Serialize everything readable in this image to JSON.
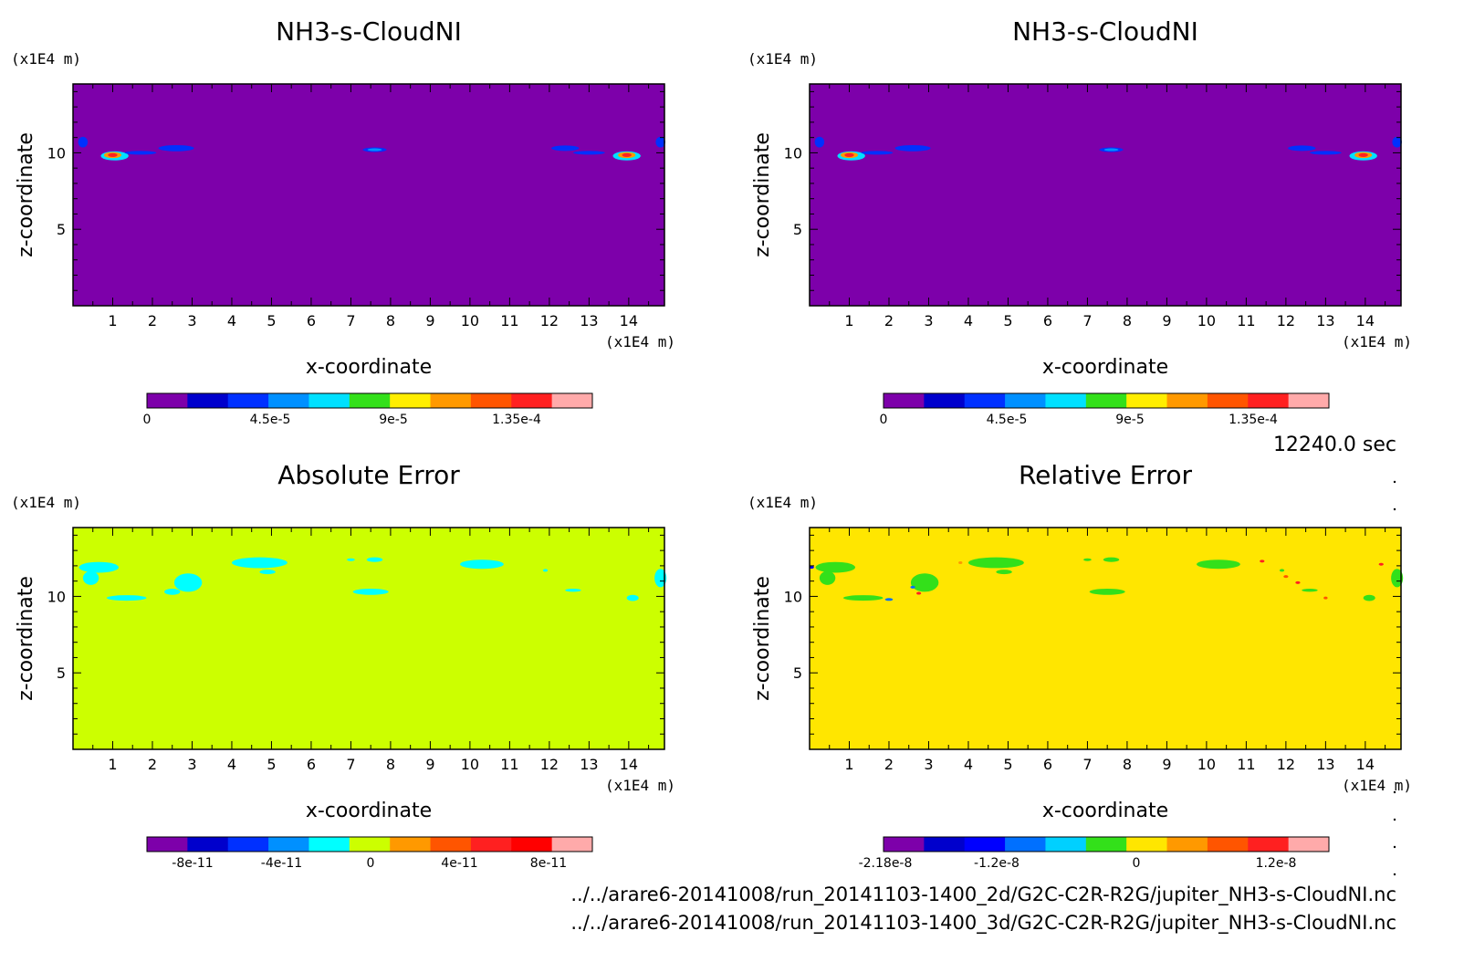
{
  "figure": {
    "time_label": "12240.0 sec",
    "files": [
      "../../arare6-20141008/run_20141103-1400_2d/G2C-C2R-R2G/jupiter_NH3-s-CloudNI.nc",
      "../../arare6-20141008/run_20141103-1400_3d/G2C-C2R-R2G/jupiter_NH3-s-CloudNI.nc"
    ]
  },
  "chart_data": [
    {
      "type": "heatmap",
      "title": "NH3-s-CloudNI",
      "xlabel": "x-coordinate",
      "ylabel": "z-coordinate",
      "x_unit": "(x1E4 m)",
      "y_unit": "(x1E4 m)",
      "xlim": [
        0,
        14.9
      ],
      "ylim": [
        0,
        14.5
      ],
      "x_ticks": [
        "1",
        "2",
        "3",
        "4",
        "5",
        "6",
        "7",
        "8",
        "9",
        "10",
        "11",
        "12",
        "13",
        "14"
      ],
      "y_ticks": [
        "5",
        "10"
      ],
      "background": "#7d00aa",
      "colorbar": {
        "colors": [
          "#7d00aa",
          "#0000cc",
          "#0030ff",
          "#0090ff",
          "#00e0ff",
          "#33e01a",
          "#ffee00",
          "#ff9900",
          "#ff5500",
          "#ff2020",
          "#ffaaaa"
        ],
        "tick_labels": [
          "0",
          "4.5e-5",
          "9e-5",
          "1.35e-4"
        ]
      },
      "features": [
        {
          "x": 0.25,
          "z": 10.7,
          "rx": 0.12,
          "rz": 0.35,
          "color": "#0030ff"
        },
        {
          "x": 1.05,
          "z": 9.8,
          "rx": 0.35,
          "rz": 0.3,
          "color": "#00e0ff"
        },
        {
          "x": 1.0,
          "z": 9.85,
          "rx": 0.22,
          "rz": 0.2,
          "color": "#ff9900"
        },
        {
          "x": 1.0,
          "z": 9.85,
          "rx": 0.12,
          "rz": 0.12,
          "color": "#ff2020"
        },
        {
          "x": 1.7,
          "z": 10.0,
          "rx": 0.4,
          "rz": 0.12,
          "color": "#0030ff"
        },
        {
          "x": 2.6,
          "z": 10.3,
          "rx": 0.45,
          "rz": 0.2,
          "color": "#0030ff"
        },
        {
          "x": 7.6,
          "z": 10.2,
          "rx": 0.3,
          "rz": 0.15,
          "color": "#0030ff"
        },
        {
          "x": 7.6,
          "z": 10.2,
          "rx": 0.18,
          "rz": 0.07,
          "color": "#0090ff"
        },
        {
          "x": 12.4,
          "z": 10.3,
          "rx": 0.35,
          "rz": 0.18,
          "color": "#0030ff"
        },
        {
          "x": 13.0,
          "z": 10.0,
          "rx": 0.4,
          "rz": 0.12,
          "color": "#0030ff"
        },
        {
          "x": 13.95,
          "z": 9.8,
          "rx": 0.35,
          "rz": 0.3,
          "color": "#00e0ff"
        },
        {
          "x": 13.95,
          "z": 9.85,
          "rx": 0.22,
          "rz": 0.2,
          "color": "#ff9900"
        },
        {
          "x": 13.95,
          "z": 9.85,
          "rx": 0.12,
          "rz": 0.12,
          "color": "#ff2020"
        },
        {
          "x": 14.8,
          "z": 10.7,
          "rx": 0.12,
          "rz": 0.35,
          "color": "#0030ff"
        }
      ]
    },
    {
      "type": "heatmap",
      "title": "NH3-s-CloudNI",
      "xlabel": "x-coordinate",
      "ylabel": "z-coordinate",
      "x_unit": "(x1E4 m)",
      "y_unit": "(x1E4 m)",
      "xlim": [
        0,
        14.9
      ],
      "ylim": [
        0,
        14.5
      ],
      "x_ticks": [
        "1",
        "2",
        "3",
        "4",
        "5",
        "6",
        "7",
        "8",
        "9",
        "10",
        "11",
        "12",
        "13",
        "14"
      ],
      "y_ticks": [
        "5",
        "10"
      ],
      "background": "#7d00aa",
      "colorbar": {
        "colors": [
          "#7d00aa",
          "#0000cc",
          "#0030ff",
          "#0090ff",
          "#00e0ff",
          "#33e01a",
          "#ffee00",
          "#ff9900",
          "#ff5500",
          "#ff2020",
          "#ffaaaa"
        ],
        "tick_labels": [
          "0",
          "4.5e-5",
          "9e-5",
          "1.35e-4"
        ]
      },
      "features": [
        {
          "x": 0.25,
          "z": 10.7,
          "rx": 0.12,
          "rz": 0.35,
          "color": "#0030ff"
        },
        {
          "x": 1.05,
          "z": 9.8,
          "rx": 0.35,
          "rz": 0.3,
          "color": "#00e0ff"
        },
        {
          "x": 1.0,
          "z": 9.85,
          "rx": 0.22,
          "rz": 0.2,
          "color": "#ff9900"
        },
        {
          "x": 1.0,
          "z": 9.85,
          "rx": 0.12,
          "rz": 0.12,
          "color": "#ff2020"
        },
        {
          "x": 1.7,
          "z": 10.0,
          "rx": 0.4,
          "rz": 0.12,
          "color": "#0030ff"
        },
        {
          "x": 2.6,
          "z": 10.3,
          "rx": 0.45,
          "rz": 0.2,
          "color": "#0030ff"
        },
        {
          "x": 7.6,
          "z": 10.2,
          "rx": 0.3,
          "rz": 0.15,
          "color": "#0030ff"
        },
        {
          "x": 7.6,
          "z": 10.2,
          "rx": 0.18,
          "rz": 0.07,
          "color": "#0090ff"
        },
        {
          "x": 12.4,
          "z": 10.3,
          "rx": 0.35,
          "rz": 0.18,
          "color": "#0030ff"
        },
        {
          "x": 13.0,
          "z": 10.0,
          "rx": 0.4,
          "rz": 0.12,
          "color": "#0030ff"
        },
        {
          "x": 13.95,
          "z": 9.8,
          "rx": 0.35,
          "rz": 0.3,
          "color": "#00e0ff"
        },
        {
          "x": 13.95,
          "z": 9.85,
          "rx": 0.22,
          "rz": 0.2,
          "color": "#ff9900"
        },
        {
          "x": 13.95,
          "z": 9.85,
          "rx": 0.12,
          "rz": 0.12,
          "color": "#ff2020"
        },
        {
          "x": 14.8,
          "z": 10.7,
          "rx": 0.12,
          "rz": 0.35,
          "color": "#0030ff"
        }
      ]
    },
    {
      "type": "heatmap",
      "title": "Absolute Error",
      "xlabel": "x-coordinate",
      "ylabel": "z-coordinate",
      "x_unit": "(x1E4 m)",
      "y_unit": "(x1E4 m)",
      "xlim": [
        0,
        14.9
      ],
      "ylim": [
        0,
        14.5
      ],
      "x_ticks": [
        "1",
        "2",
        "3",
        "4",
        "5",
        "6",
        "7",
        "8",
        "9",
        "10",
        "11",
        "12",
        "13",
        "14"
      ],
      "y_ticks": [
        "5",
        "10"
      ],
      "background": "#ccff00",
      "colorbar": {
        "colors": [
          "#7d00aa",
          "#0000cc",
          "#0030ff",
          "#0090ff",
          "#00ffff",
          "#ccff00",
          "#ff9900",
          "#ff5500",
          "#ff2020",
          "#ff0000",
          "#ffaaaa"
        ],
        "tick_labels": [
          "-8e-11",
          "-4e-11",
          "0",
          "4e-11",
          "8e-11"
        ]
      },
      "features": [
        {
          "x": 0.65,
          "z": 11.9,
          "rx": 0.5,
          "rz": 0.35,
          "color": "#00ffff"
        },
        {
          "x": 0.45,
          "z": 11.2,
          "rx": 0.2,
          "rz": 0.45,
          "color": "#00ffff"
        },
        {
          "x": 1.35,
          "z": 9.9,
          "rx": 0.5,
          "rz": 0.18,
          "color": "#00ffff"
        },
        {
          "x": 2.9,
          "z": 10.9,
          "rx": 0.35,
          "rz": 0.6,
          "color": "#00ffff"
        },
        {
          "x": 2.5,
          "z": 10.3,
          "rx": 0.2,
          "rz": 0.2,
          "color": "#00ffff"
        },
        {
          "x": 4.7,
          "z": 12.2,
          "rx": 0.7,
          "rz": 0.35,
          "color": "#00ffff"
        },
        {
          "x": 4.9,
          "z": 11.6,
          "rx": 0.2,
          "rz": 0.15,
          "color": "#00ffff"
        },
        {
          "x": 7.0,
          "z": 12.4,
          "rx": 0.1,
          "rz": 0.07,
          "color": "#00ffff"
        },
        {
          "x": 7.6,
          "z": 12.4,
          "rx": 0.2,
          "rz": 0.15,
          "color": "#00ffff"
        },
        {
          "x": 7.5,
          "z": 10.3,
          "rx": 0.45,
          "rz": 0.2,
          "color": "#00ffff"
        },
        {
          "x": 10.3,
          "z": 12.1,
          "rx": 0.55,
          "rz": 0.3,
          "color": "#00ffff"
        },
        {
          "x": 11.9,
          "z": 11.7,
          "rx": 0.06,
          "rz": 0.05,
          "color": "#00ffff"
        },
        {
          "x": 12.6,
          "z": 10.4,
          "rx": 0.2,
          "rz": 0.1,
          "color": "#00ffff"
        },
        {
          "x": 14.1,
          "z": 9.9,
          "rx": 0.15,
          "rz": 0.2,
          "color": "#00ffff"
        },
        {
          "x": 14.8,
          "z": 11.2,
          "rx": 0.15,
          "rz": 0.6,
          "color": "#00ffff"
        }
      ]
    },
    {
      "type": "heatmap",
      "title": "Relative Error",
      "xlabel": "x-coordinate",
      "ylabel": "z-coordinate",
      "x_unit": "(x1E4 m)",
      "y_unit": "(x1E4 m)",
      "xlim": [
        0,
        14.9
      ],
      "ylim": [
        0,
        14.5
      ],
      "x_ticks": [
        "1",
        "2",
        "3",
        "4",
        "5",
        "6",
        "7",
        "8",
        "9",
        "10",
        "11",
        "12",
        "13",
        "14"
      ],
      "y_ticks": [
        "5",
        "10"
      ],
      "background": "#ffe600",
      "colorbar": {
        "colors": [
          "#7d00aa",
          "#0000cc",
          "#0000ff",
          "#0070ff",
          "#00d0ff",
          "#33e01a",
          "#ffe600",
          "#ff9900",
          "#ff5500",
          "#ff2020",
          "#ffaaaa"
        ],
        "tick_labels": [
          "-2.18e-8",
          "-1.2e-8",
          "0",
          "1.2e-8"
        ]
      },
      "features": [
        {
          "x": 0.65,
          "z": 11.9,
          "rx": 0.5,
          "rz": 0.35,
          "color": "#33e01a"
        },
        {
          "x": 0.45,
          "z": 11.2,
          "rx": 0.2,
          "rz": 0.45,
          "color": "#33e01a"
        },
        {
          "x": 0.05,
          "z": 11.9,
          "rx": 0.06,
          "rz": 0.08,
          "color": "#0000ff"
        },
        {
          "x": 1.35,
          "z": 9.9,
          "rx": 0.5,
          "rz": 0.18,
          "color": "#33e01a"
        },
        {
          "x": 2.0,
          "z": 9.8,
          "rx": 0.1,
          "rz": 0.06,
          "color": "#0070ff"
        },
        {
          "x": 2.9,
          "z": 10.9,
          "rx": 0.35,
          "rz": 0.6,
          "color": "#33e01a"
        },
        {
          "x": 2.6,
          "z": 10.6,
          "rx": 0.06,
          "rz": 0.06,
          "color": "#0070ff"
        },
        {
          "x": 2.75,
          "z": 10.2,
          "rx": 0.06,
          "rz": 0.05,
          "color": "#ff2020"
        },
        {
          "x": 4.7,
          "z": 12.2,
          "rx": 0.7,
          "rz": 0.35,
          "color": "#33e01a"
        },
        {
          "x": 4.9,
          "z": 11.6,
          "rx": 0.2,
          "rz": 0.15,
          "color": "#33e01a"
        },
        {
          "x": 3.8,
          "z": 12.2,
          "rx": 0.05,
          "rz": 0.04,
          "color": "#ff9900"
        },
        {
          "x": 7.0,
          "z": 12.4,
          "rx": 0.1,
          "rz": 0.07,
          "color": "#33e01a"
        },
        {
          "x": 7.6,
          "z": 12.4,
          "rx": 0.2,
          "rz": 0.15,
          "color": "#33e01a"
        },
        {
          "x": 7.5,
          "z": 10.3,
          "rx": 0.45,
          "rz": 0.2,
          "color": "#33e01a"
        },
        {
          "x": 10.3,
          "z": 12.1,
          "rx": 0.55,
          "rz": 0.3,
          "color": "#33e01a"
        },
        {
          "x": 11.4,
          "z": 12.3,
          "rx": 0.06,
          "rz": 0.05,
          "color": "#ff2020"
        },
        {
          "x": 11.9,
          "z": 11.7,
          "rx": 0.06,
          "rz": 0.05,
          "color": "#33e01a"
        },
        {
          "x": 12.0,
          "z": 11.3,
          "rx": 0.06,
          "rz": 0.05,
          "color": "#ff5500"
        },
        {
          "x": 12.3,
          "z": 10.9,
          "rx": 0.06,
          "rz": 0.05,
          "color": "#ff2020"
        },
        {
          "x": 12.6,
          "z": 10.4,
          "rx": 0.2,
          "rz": 0.1,
          "color": "#33e01a"
        },
        {
          "x": 13.0,
          "z": 9.9,
          "rx": 0.05,
          "rz": 0.04,
          "color": "#ff5500"
        },
        {
          "x": 14.1,
          "z": 9.9,
          "rx": 0.15,
          "rz": 0.2,
          "color": "#33e01a"
        },
        {
          "x": 14.4,
          "z": 12.1,
          "rx": 0.06,
          "rz": 0.05,
          "color": "#ff2020"
        },
        {
          "x": 14.8,
          "z": 11.2,
          "rx": 0.15,
          "rz": 0.6,
          "color": "#33e01a"
        }
      ]
    }
  ]
}
